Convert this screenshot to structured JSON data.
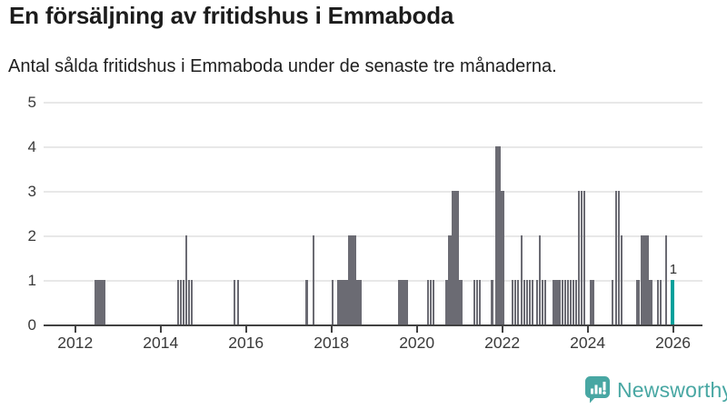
{
  "header": {
    "title": "En försäljning av fritidshus i Emmaboda",
    "subtitle": "Antal sålda fritidshus i Emmaboda under de senaste tre månaderna."
  },
  "chart_data": {
    "type": "bar",
    "title": "En försäljning av fritidshus i Emmaboda",
    "subtitle": "Antal sålda fritidshus i Emmaboda under de senaste tre månaderna.",
    "xlabel": "",
    "ylabel": "",
    "grid": "horizontal",
    "legend": "none",
    "x_domain": [
      2011.26,
      2026.69
    ],
    "y_domain": [
      0,
      5
    ],
    "x_ticks": [
      2012,
      2014,
      2016,
      2018,
      2020,
      2022,
      2024,
      2026
    ],
    "y_ticks": [
      0,
      1,
      2,
      3,
      4,
      5
    ],
    "colors": {
      "bar": "#6b6b73",
      "current": "#00a09b",
      "grid": "#e8e8e8",
      "axis": "#424242"
    },
    "bars": [
      {
        "t": 2012.45,
        "v": 1,
        "w": 0.266
      },
      {
        "t": 2014.383,
        "v": 1
      },
      {
        "t": 2014.447,
        "v": 1
      },
      {
        "t": 2014.511,
        "v": 1
      },
      {
        "t": 2014.574,
        "v": 2
      },
      {
        "t": 2014.638,
        "v": 1
      },
      {
        "t": 2014.702,
        "v": 1
      },
      {
        "t": 2015.715,
        "v": 1
      },
      {
        "t": 2015.787,
        "v": 1,
        "w": 0.055
      },
      {
        "t": 2017.389,
        "v": 1,
        "w": 0.064
      },
      {
        "t": 2017.56,
        "v": 2,
        "w": 0.051
      },
      {
        "t": 2018.0,
        "v": 1
      },
      {
        "t": 2018.128,
        "v": 1,
        "w": 0.253
      },
      {
        "t": 2018.383,
        "v": 2,
        "w": 0.191
      },
      {
        "t": 2018.574,
        "v": 1,
        "w": 0.14
      },
      {
        "t": 2019.566,
        "v": 1,
        "w": 0.228
      },
      {
        "t": 2020.241,
        "v": 1
      },
      {
        "t": 2020.305,
        "v": 1
      },
      {
        "t": 2020.369,
        "v": 1
      },
      {
        "t": 2020.667,
        "v": 1,
        "w": 0.07
      },
      {
        "t": 2020.737,
        "v": 2,
        "w": 0.079
      },
      {
        "t": 2020.816,
        "v": 3,
        "w": 0.17
      },
      {
        "t": 2020.986,
        "v": 1,
        "w": 0.085
      },
      {
        "t": 2021.326,
        "v": 1
      },
      {
        "t": 2021.39,
        "v": 1
      },
      {
        "t": 2021.454,
        "v": 1
      },
      {
        "t": 2021.73,
        "v": 1,
        "w": 0.07
      },
      {
        "t": 2021.83,
        "v": 4,
        "w": 0.128
      },
      {
        "t": 2021.957,
        "v": 3,
        "w": 0.091
      },
      {
        "t": 2022.226,
        "v": 1
      },
      {
        "t": 2022.29,
        "v": 1
      },
      {
        "t": 2022.353,
        "v": 1
      },
      {
        "t": 2022.426,
        "v": 2
      },
      {
        "t": 2022.489,
        "v": 1
      },
      {
        "t": 2022.553,
        "v": 1
      },
      {
        "t": 2022.617,
        "v": 1
      },
      {
        "t": 2022.681,
        "v": 1
      },
      {
        "t": 2022.794,
        "v": 1
      },
      {
        "t": 2022.857,
        "v": 2
      },
      {
        "t": 2022.921,
        "v": 1
      },
      {
        "t": 2022.985,
        "v": 1
      },
      {
        "t": 2023.177,
        "v": 1,
        "w": 0.202
      },
      {
        "t": 2023.389,
        "v": 1
      },
      {
        "t": 2023.453,
        "v": 1
      },
      {
        "t": 2023.517,
        "v": 1
      },
      {
        "t": 2023.581,
        "v": 1
      },
      {
        "t": 2023.645,
        "v": 1
      },
      {
        "t": 2023.709,
        "v": 1
      },
      {
        "t": 2023.772,
        "v": 3
      },
      {
        "t": 2023.836,
        "v": 3
      },
      {
        "t": 2023.9,
        "v": 3
      },
      {
        "t": 2024.055,
        "v": 1,
        "w": 0.102
      },
      {
        "t": 2024.566,
        "v": 1
      },
      {
        "t": 2024.651,
        "v": 3
      },
      {
        "t": 2024.715,
        "v": 3
      },
      {
        "t": 2024.779,
        "v": 2
      },
      {
        "t": 2025.14,
        "v": 1,
        "w": 0.079
      },
      {
        "t": 2025.247,
        "v": 2,
        "w": 0.185
      },
      {
        "t": 2025.432,
        "v": 1,
        "w": 0.085
      },
      {
        "t": 2025.634,
        "v": 1
      },
      {
        "t": 2025.698,
        "v": 1
      },
      {
        "t": 2025.815,
        "v": 2,
        "w": 0.055
      },
      {
        "t": 2025.943,
        "v": 1,
        "w": 0.085,
        "current": true,
        "label": "1"
      }
    ]
  },
  "footer": {
    "brand": "Newsworthy",
    "brand_color": "#48a7a3"
  }
}
